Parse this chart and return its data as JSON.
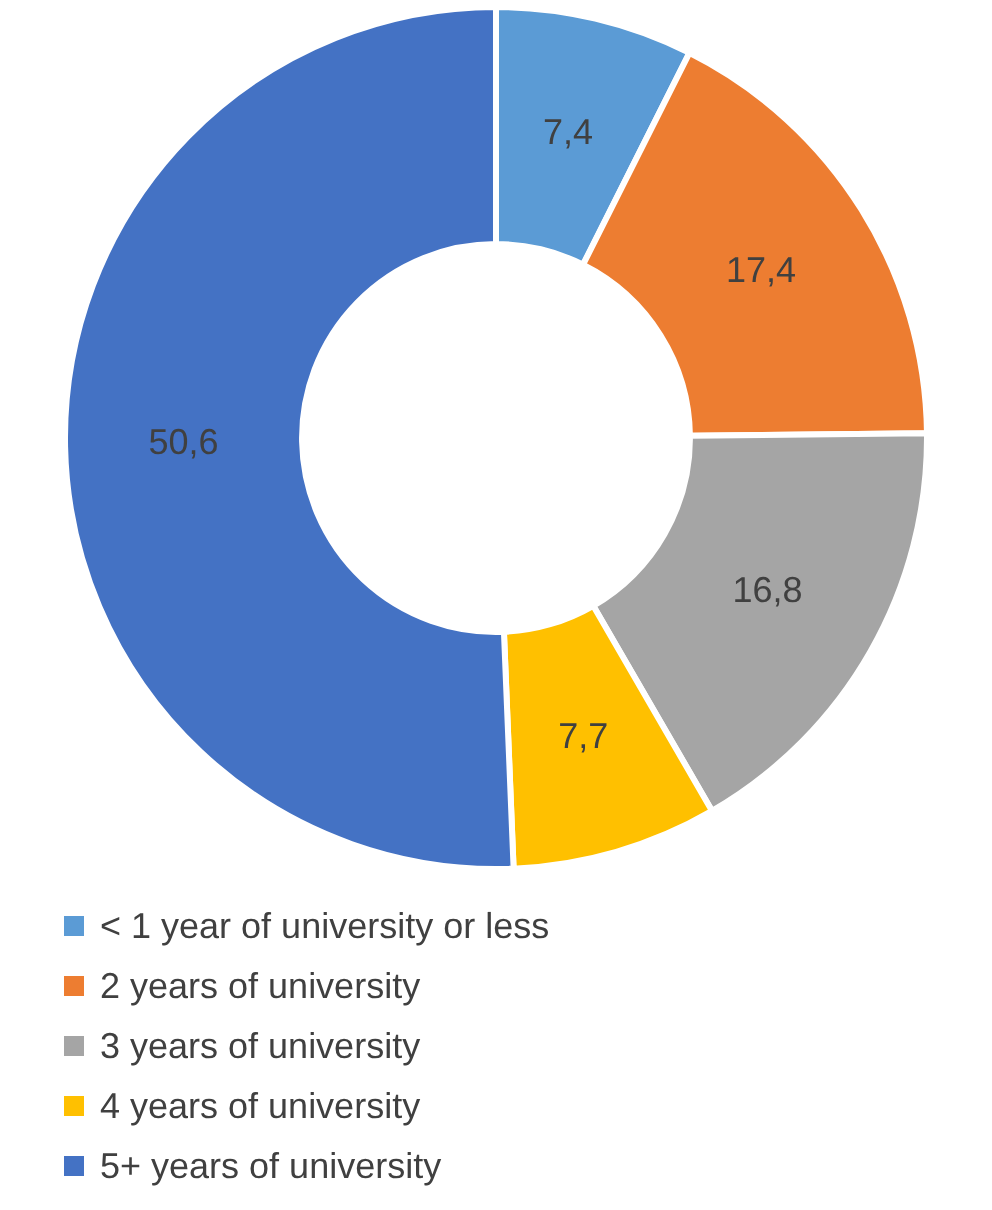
{
  "chart_data": {
    "type": "donut",
    "categories": [
      "< 1 year of university or less",
      "2 years of university",
      "3 years of university",
      "4 years of university",
      "5+ years of university"
    ],
    "values": [
      7.4,
      17.4,
      16.8,
      7.7,
      50.6
    ],
    "value_labels": [
      "7,4",
      "17,4",
      "16,8",
      "7,7",
      "50,6"
    ],
    "colors": [
      "#5b9bd5",
      "#ed7d31",
      "#a5a5a5",
      "#ffc000",
      "#4472c4"
    ],
    "legend": "bottom"
  }
}
